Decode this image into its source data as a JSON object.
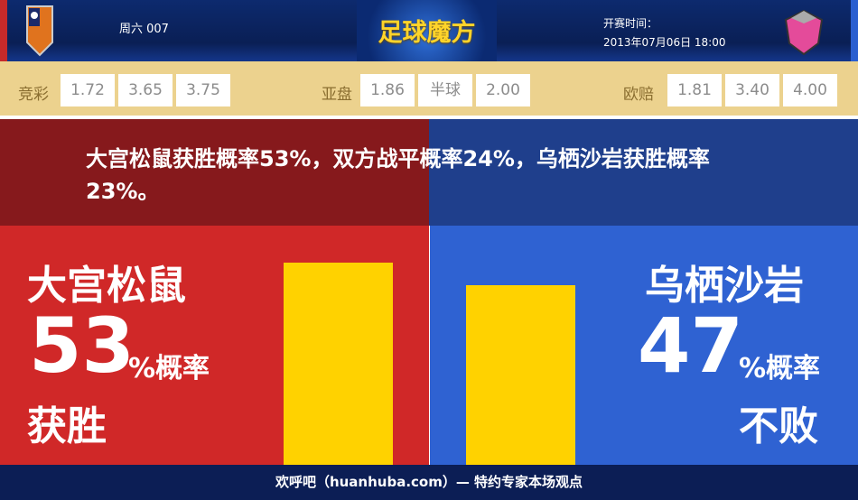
{
  "header": {
    "match_no": "周六 007",
    "logo_text": "足球魔方",
    "start_label": "开赛时间：",
    "start_time": "2013年07月06日 18:00",
    "home_team_logo": "omiya-ardija-crest",
    "away_team_logo": "sagan-tosu-crest"
  },
  "odds": {
    "jingcai": {
      "label": "竞彩",
      "values": [
        "1.72",
        "3.65",
        "3.75"
      ]
    },
    "asian": {
      "label": "亚盘",
      "values": [
        "1.86",
        "半球",
        "2.00"
      ]
    },
    "euro": {
      "label": "欧赔",
      "values": [
        "1.81",
        "3.40",
        "4.00"
      ]
    }
  },
  "summary": "大宫松鼠获胜概率53%，双方战平概率24%，乌栖沙岩获胜概率23%。",
  "home": {
    "name": "大宫松鼠",
    "percent": "53",
    "unit": "%概率",
    "outcome": "获胜",
    "bar_value": 53
  },
  "away": {
    "name": "乌栖沙岩",
    "percent": "47",
    "unit": "%概率",
    "outcome": "不败",
    "bar_value": 47
  },
  "colors": {
    "home": "#d02828",
    "away": "#2f62d2",
    "bar": "#ffd200"
  },
  "footer": "欢呼吧（huanhuba.com）— 特约专家本场观点"
}
